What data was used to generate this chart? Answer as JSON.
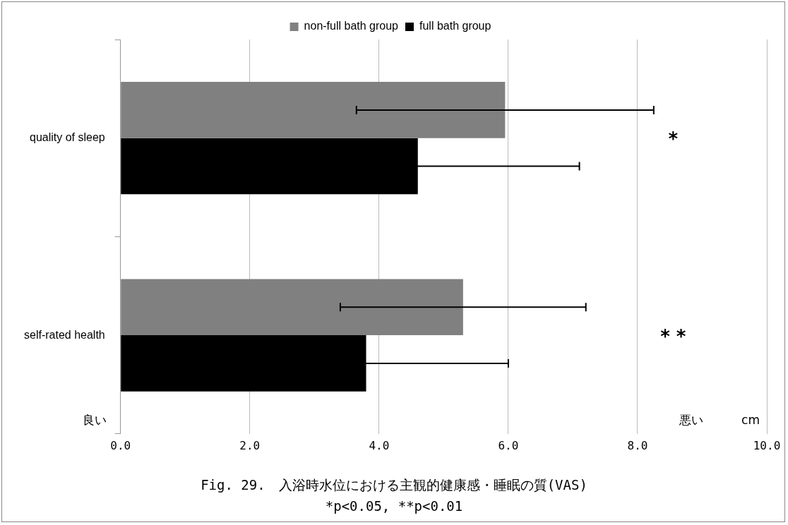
{
  "chart_data": {
    "type": "bar",
    "orientation": "horizontal",
    "title": "Fig. 29.　入浴時水位における主観的健康感・睡眠の質(VAS)",
    "subtitle": "*p<0.05, **p<0.01",
    "categories": [
      "quality of sleep",
      "self-rated health"
    ],
    "series": [
      {
        "name": "non-full bath group",
        "color": "#808080",
        "values": [
          5.95,
          5.3
        ],
        "errors": [
          2.3,
          1.9
        ]
      },
      {
        "name": "full bath group",
        "color": "#000000",
        "values": [
          4.6,
          3.8
        ],
        "errors": [
          2.5,
          2.2
        ]
      }
    ],
    "xlim": [
      0,
      10
    ],
    "xticks": [
      {
        "value": 0,
        "label": "0.0"
      },
      {
        "value": 2,
        "label": "2.0"
      },
      {
        "value": 4,
        "label": "4.0"
      },
      {
        "value": 6,
        "label": "6.0"
      },
      {
        "value": 8,
        "label": "8.0"
      },
      {
        "value": 10,
        "label": "10.0"
      }
    ],
    "grid": "x",
    "legend": "top",
    "annotations": [
      "*",
      "* *",
      "良い",
      "悪い",
      "cm"
    ]
  }
}
